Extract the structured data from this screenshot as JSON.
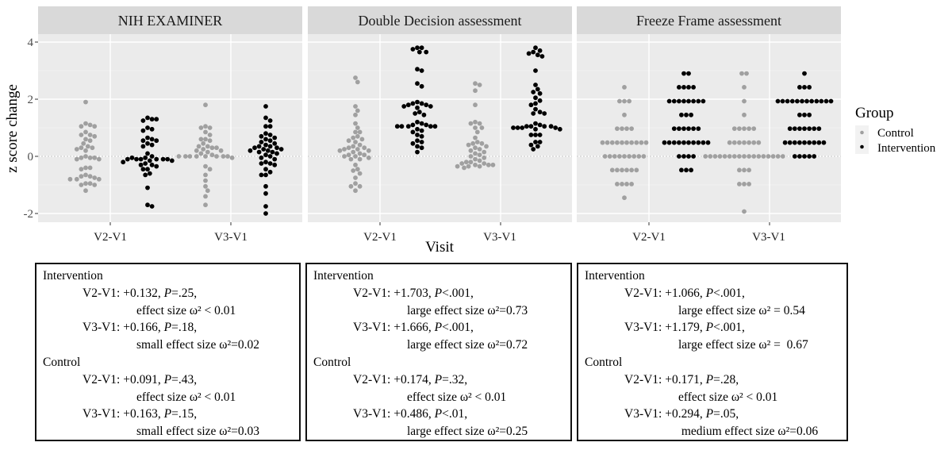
{
  "figure": {
    "y_axis_title": "z score change",
    "x_axis_title": "Visit",
    "legend": {
      "title": "Group",
      "items": [
        {
          "label": "Control",
          "color": "#a0a0a0"
        },
        {
          "label": "Intervention",
          "color": "#000000"
        }
      ]
    },
    "colors": {
      "panel_bg": "#ebebeb",
      "strip_bg": "#d9d9d9",
      "grid": "#ffffff",
      "zero_line": "#b3b3b3",
      "control": "#a0a0a0",
      "intervention": "#000000"
    }
  },
  "chart_data": [
    {
      "type": "scatter",
      "subtype": "beeswarm",
      "title": "NIH EXAMINER",
      "xlabel": "Visit",
      "ylabel": "z score change",
      "categories": [
        "V2-V1",
        "V3-V1"
      ],
      "ylim": [
        -2.3,
        4.3
      ],
      "yticks": [
        -2,
        0,
        2,
        4
      ],
      "reference_line": 0,
      "series": [
        {
          "name": "Control",
          "visit": "V2-V1",
          "values": [
            1.9,
            1.15,
            1.1,
            1.05,
            1.05,
            0.85,
            0.75,
            0.75,
            0.7,
            0.6,
            0.55,
            0.45,
            0.35,
            0.3,
            0.3,
            0.25,
            0.2,
            0,
            -0.05,
            -0.05,
            -0.05,
            -0.1,
            -0.1,
            -0.4,
            -0.4,
            -0.45,
            -0.65,
            -0.7,
            -0.7,
            -0.75,
            -0.8,
            -0.8,
            -0.8,
            -0.95,
            -0.95,
            -1.0,
            -1.0,
            -1.2
          ]
        },
        {
          "name": "Intervention",
          "visit": "V2-V1",
          "values": [
            1.35,
            1.3,
            1.25,
            1.3,
            1.0,
            0.95,
            0.9,
            0.65,
            0.6,
            0.55,
            0.55,
            0.45,
            0.4,
            0.35,
            0.1,
            0,
            -0.05,
            -0.1,
            -0.1,
            -0.1,
            -0.1,
            -0.05,
            -0.1,
            -0.1,
            -0.15,
            -0.15,
            -0.2,
            -0.25,
            -0.3,
            -0.3,
            -0.35,
            -0.45,
            -0.45,
            -0.6,
            -0.65,
            -1.1,
            -1.7,
            -1.75
          ]
        },
        {
          "name": "Control",
          "visit": "V3-V1",
          "values": [
            1.8,
            1.05,
            1.0,
            1.0,
            0.85,
            0.75,
            0.6,
            0.6,
            0.55,
            0.45,
            0.35,
            0.35,
            0.3,
            0.3,
            0.25,
            0.2,
            0.2,
            0.15,
            0.1,
            0.05,
            0,
            0,
            0,
            0,
            0,
            0,
            0,
            0,
            -0.05,
            -0.35,
            -0.45,
            -0.65,
            -0.85,
            -1.05,
            -1.2,
            -1.4,
            -1.7
          ]
        },
        {
          "name": "Intervention",
          "visit": "V3-V1",
          "values": [
            1.75,
            1.35,
            1.25,
            1.05,
            1.05,
            0.8,
            0.75,
            0.7,
            0.65,
            0.6,
            0.55,
            0.5,
            0.45,
            0.4,
            0.35,
            0.35,
            0.3,
            0.3,
            0.25,
            0.25,
            0.2,
            0.2,
            0.15,
            0.15,
            0.1,
            0.05,
            0,
            -0.05,
            -0.1,
            -0.2,
            -0.25,
            -0.25,
            -0.3,
            -0.45,
            -0.55,
            -0.65,
            -0.65,
            -1.05,
            -1.3,
            -1.75,
            -2.0
          ]
        }
      ]
    },
    {
      "type": "scatter",
      "subtype": "beeswarm",
      "title": "Double Decision assessment",
      "xlabel": "Visit",
      "ylabel": "z score change",
      "categories": [
        "V2-V1",
        "V3-V1"
      ],
      "ylim": [
        -2.3,
        4.3
      ],
      "yticks": [
        -2,
        0,
        2,
        4
      ],
      "reference_line": 0,
      "series": [
        {
          "name": "Control",
          "visit": "V2-V1",
          "values": [
            2.75,
            2.6,
            1.75,
            1.6,
            1.45,
            1.15,
            1.0,
            0.85,
            0.85,
            0.7,
            0.65,
            0.6,
            0.55,
            0.5,
            0.4,
            0.35,
            0.3,
            0.3,
            0.25,
            0.25,
            0.2,
            0.2,
            0.15,
            0.1,
            0.05,
            0.05,
            0,
            0,
            -0.05,
            -0.1,
            -0.1,
            -0.3,
            -0.45,
            -0.5,
            -0.6,
            -0.75,
            -0.95,
            -1.05,
            -1.05,
            -1.2
          ]
        },
        {
          "name": "Intervention",
          "visit": "V2-V1",
          "values": [
            3.8,
            3.8,
            3.75,
            3.65,
            3.65,
            3.05,
            3.0,
            2.55,
            2.45,
            1.9,
            1.85,
            1.85,
            1.8,
            1.8,
            1.75,
            1.75,
            1.7,
            1.55,
            1.5,
            1.45,
            1.2,
            1.15,
            1.1,
            1.1,
            1.05,
            1.05,
            1.05,
            1.05,
            1.05,
            0.95,
            0.9,
            0.85,
            0.75,
            0.7,
            0.55,
            0.5,
            0.45,
            0.35,
            0.3,
            0.15
          ]
        },
        {
          "name": "Control",
          "visit": "V3-V1",
          "values": [
            2.55,
            2.5,
            2.3,
            1.8,
            1.2,
            1.15,
            1.15,
            1.0,
            1.0,
            0.85,
            0.65,
            0.5,
            0.45,
            0.45,
            0.4,
            0.35,
            0.3,
            0.25,
            0.2,
            0.15,
            0.1,
            0.05,
            0,
            -0.05,
            -0.1,
            -0.15,
            -0.2,
            -0.2,
            -0.25,
            -0.25,
            -0.3,
            -0.3,
            -0.3,
            -0.35,
            -0.35,
            -0.35,
            -0.4
          ]
        },
        {
          "name": "Intervention",
          "visit": "V3-V1",
          "values": [
            3.8,
            3.7,
            3.65,
            3.6,
            3.55,
            3.5,
            3.0,
            2.5,
            2.35,
            2.25,
            2.2,
            2.05,
            1.95,
            1.85,
            1.8,
            1.65,
            1.55,
            1.5,
            1.5,
            1.15,
            1.1,
            1.05,
            1.05,
            1.05,
            1.05,
            1.0,
            1.0,
            1.0,
            1.0,
            0.95,
            0.95,
            0.75,
            0.75,
            0.75,
            0.5,
            0.5,
            0.4,
            0.35,
            0.25
          ]
        }
      ]
    },
    {
      "type": "scatter",
      "subtype": "dotplot",
      "title": "Freeze Frame assessment",
      "xlabel": "Visit",
      "ylabel": "z score change",
      "categories": [
        "V2-V1",
        "V3-V1"
      ],
      "ylim": [
        -2.3,
        4.3
      ],
      "yticks": [
        -2,
        0,
        2,
        4
      ],
      "reference_line": 0,
      "series": [
        {
          "name": "Control",
          "visit": "V2-V1",
          "levels": [
            2.42,
            1.93,
            1.45,
            0.97,
            0.48,
            0,
            -0.48,
            -0.97,
            -1.45
          ],
          "counts": [
            1,
            3,
            1,
            4,
            10,
            9,
            6,
            4,
            1
          ]
        },
        {
          "name": "Intervention",
          "visit": "V2-V1",
          "levels": [
            2.9,
            2.42,
            1.93,
            1.45,
            0.97,
            0.48,
            0,
            -0.48
          ],
          "counts": [
            2,
            4,
            8,
            3,
            6,
            10,
            4,
            3
          ]
        },
        {
          "name": "Control",
          "visit": "V3-V1",
          "levels": [
            2.9,
            2.42,
            1.93,
            1.45,
            0.97,
            0.48,
            0,
            -0.48,
            -0.97,
            -1.93
          ],
          "counts": [
            2,
            1,
            1,
            1,
            5,
            7,
            17,
            3,
            3,
            1
          ]
        },
        {
          "name": "Intervention",
          "visit": "V3-V1",
          "levels": [
            2.9,
            2.42,
            1.93,
            1.45,
            0.97,
            0.48,
            0
          ],
          "counts": [
            1,
            3,
            12,
            3,
            7,
            9,
            5
          ]
        }
      ]
    }
  ],
  "stat_boxes": [
    {
      "groups": [
        {
          "name": "Intervention",
          "rows": [
            {
              "visit": "V2-V1:",
              "change": "+0.132,",
              "p_label": "P",
              "p_value": "=.25,",
              "effect": "effect size ω² < 0.01"
            },
            {
              "visit": "V3-V1:",
              "change": "+0.166,",
              "p_label": "P",
              "p_value": "=.18,",
              "effect": "small effect size ω²=0.02"
            }
          ]
        },
        {
          "name": "Control",
          "rows": [
            {
              "visit": "V2-V1:",
              "change": "+0.091,",
              "p_label": "P",
              "p_value": "=.43,",
              "effect": "effect size ω² < 0.01"
            },
            {
              "visit": "V3-V1:",
              "change": "+0.163,",
              "p_label": "P",
              "p_value": "=.15,",
              "effect": "small effect size ω²=0.03"
            }
          ]
        }
      ]
    },
    {
      "groups": [
        {
          "name": "Intervention",
          "rows": [
            {
              "visit": "V2-V1:",
              "change": "+1.703,",
              "p_label": "P",
              "p_value": "<.001,",
              "effect": "large effect size ω²=0.73"
            },
            {
              "visit": "V3-V1:",
              "change": "+1.666,",
              "p_label": "P",
              "p_value": "<.001,",
              "effect": "large effect size ω²=0.72"
            }
          ]
        },
        {
          "name": "Control",
          "rows": [
            {
              "visit": "V2-V1:",
              "change": "+0.174,",
              "p_label": "P",
              "p_value": "=.32,",
              "effect": "effect size ω² < 0.01"
            },
            {
              "visit": "V3-V1:",
              "change": "+0.486,",
              "p_label": "P",
              "p_value": "<.01,",
              "effect": "large effect size ω²=0.25"
            }
          ]
        }
      ]
    },
    {
      "groups": [
        {
          "name": "Intervention",
          "rows": [
            {
              "visit": "V2-V1:",
              "change": "+1.066,",
              "p_label": "P",
              "p_value": "<.001,",
              "effect": "large effect size ω² = 0.54"
            },
            {
              "visit": "V3-V1:",
              "change": "+1.179,",
              "p_label": "P",
              "p_value": "<.001,",
              "effect": "large effect size ω² =  0.67"
            }
          ]
        },
        {
          "name": "Control",
          "rows": [
            {
              "visit": "V2-V1:",
              "change": "+0.171,",
              "p_label": "P",
              "p_value": "=.28,",
              "effect": "effect size ω² < 0.01"
            },
            {
              "visit": "V3-V1:",
              "change": "+0.294,",
              "p_label": "P",
              "p_value": "=.05,",
              "effect": " medium effect size ω²=0.06"
            }
          ]
        }
      ]
    }
  ]
}
